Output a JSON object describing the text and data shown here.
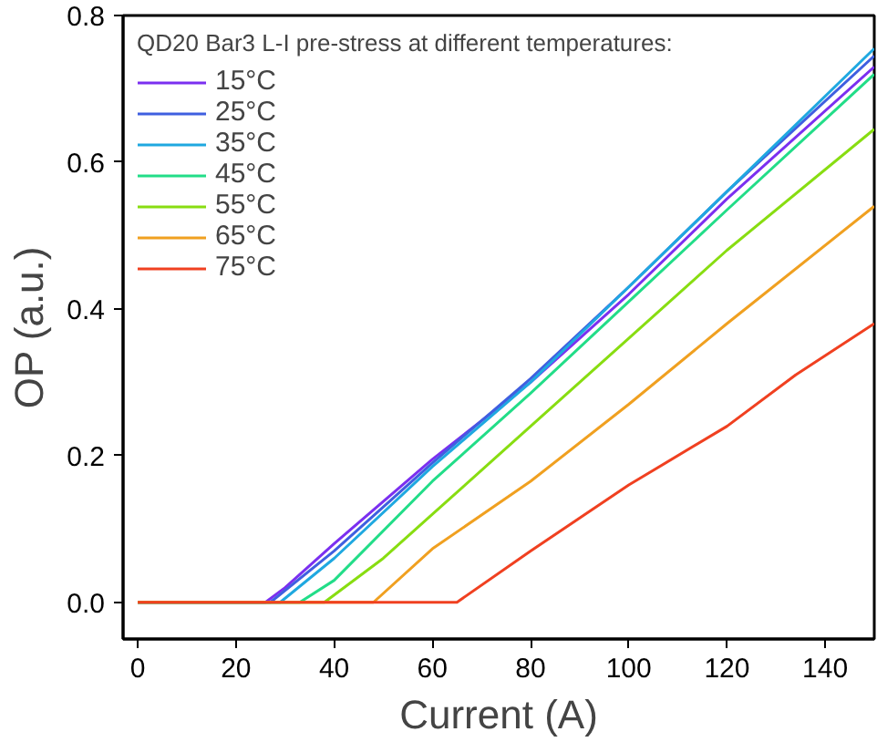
{
  "chart_data": {
    "type": "line",
    "xlabel": "Current (A)",
    "ylabel": "OP (a.u.)",
    "legend_title": "QD20 Bar3 L-I pre-stress at different temperatures:",
    "xlim": [
      -3,
      150
    ],
    "ylim": [
      -0.05,
      0.8
    ],
    "xticks": [
      0,
      20,
      40,
      60,
      80,
      100,
      120,
      140
    ],
    "yticks": [
      {
        "value": 0,
        "label": "0.0"
      },
      0.2,
      0.4,
      0.6,
      0.8
    ],
    "grid": false,
    "legend": "top left",
    "marker": "none",
    "line_style": "solid",
    "series": [
      {
        "name": "15°C",
        "color": "#7b2ff0",
        "x": [
          0,
          26,
          30,
          40,
          60,
          80,
          100,
          120,
          150
        ],
        "values": [
          0,
          0,
          0.02,
          0.08,
          0.195,
          0.3,
          0.42,
          0.55,
          0.73
        ]
      },
      {
        "name": "25°C",
        "color": "#3f5fe0",
        "x": [
          0,
          27,
          40,
          60,
          80,
          100,
          120,
          150
        ],
        "values": [
          0,
          0,
          0.07,
          0.19,
          0.305,
          0.43,
          0.56,
          0.745
        ]
      },
      {
        "name": "35°C",
        "color": "#1fa8e0",
        "x": [
          0,
          29,
          40,
          60,
          80,
          100,
          120,
          150
        ],
        "values": [
          0,
          0,
          0.06,
          0.185,
          0.3,
          0.43,
          0.56,
          0.755
        ]
      },
      {
        "name": "45°C",
        "color": "#22dd88",
        "x": [
          0,
          33,
          40,
          60,
          80,
          100,
          120,
          150
        ],
        "values": [
          0,
          0,
          0.03,
          0.165,
          0.285,
          0.41,
          0.535,
          0.72
        ]
      },
      {
        "name": "55°C",
        "color": "#88dd11",
        "x": [
          0,
          38,
          50,
          60,
          80,
          100,
          120,
          150
        ],
        "values": [
          0,
          0,
          0.06,
          0.12,
          0.24,
          0.36,
          0.48,
          0.645
        ]
      },
      {
        "name": "65°C",
        "color": "#f0a020",
        "x": [
          0,
          48,
          60,
          80,
          100,
          120,
          150
        ],
        "values": [
          0,
          0,
          0.073,
          0.165,
          0.27,
          0.38,
          0.54
        ]
      },
      {
        "name": "75°C",
        "color": "#f04020",
        "x": [
          0,
          65,
          80,
          100,
          120,
          134,
          150
        ],
        "values": [
          0,
          0,
          0.07,
          0.16,
          0.24,
          0.31,
          0.38
        ]
      }
    ]
  }
}
